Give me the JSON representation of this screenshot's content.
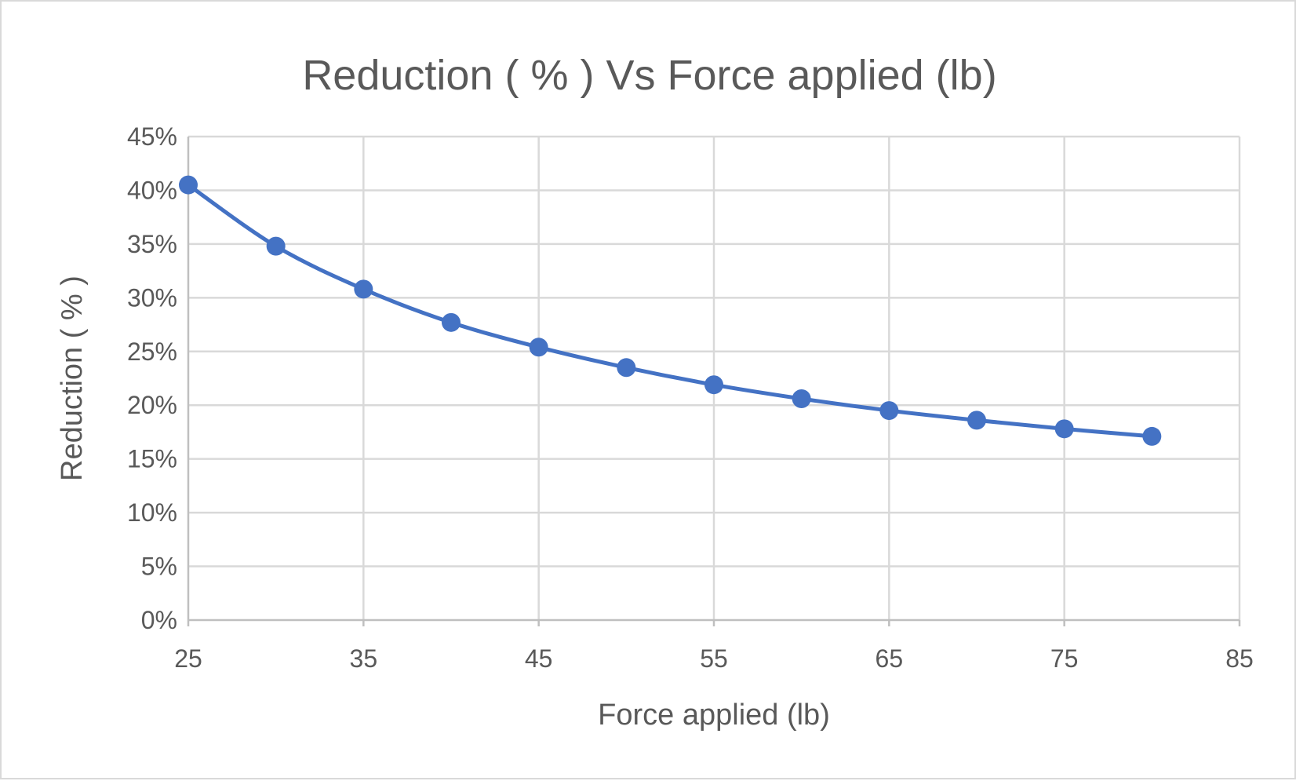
{
  "chart_data": {
    "type": "scatter",
    "title": "Reduction ( % ) Vs Force applied (lb)",
    "xlabel": "Force applied (lb)",
    "ylabel": "Reduction ( % )",
    "xlim": [
      25,
      85
    ],
    "ylim": [
      0,
      0.45
    ],
    "x_ticks": [
      25,
      35,
      45,
      55,
      65,
      75,
      85
    ],
    "x_tick_labels": [
      "25",
      "35",
      "45",
      "55",
      "65",
      "75",
      "85"
    ],
    "y_ticks": [
      0,
      0.05,
      0.1,
      0.15,
      0.2,
      0.25,
      0.3,
      0.35,
      0.4,
      0.45
    ],
    "y_tick_labels": [
      "0%",
      "5%",
      "10%",
      "15%",
      "20%",
      "25%",
      "30%",
      "35%",
      "40%",
      "45%"
    ],
    "grid": true,
    "smooth_line": true,
    "series": [
      {
        "color": "#4472c4",
        "x": [
          25,
          30,
          35,
          40,
          45,
          50,
          55,
          60,
          65,
          70,
          75,
          80
        ],
        "y": [
          0.405,
          0.348,
          0.308,
          0.277,
          0.254,
          0.235,
          0.219,
          0.206,
          0.195,
          0.186,
          0.178,
          0.171
        ]
      }
    ]
  }
}
